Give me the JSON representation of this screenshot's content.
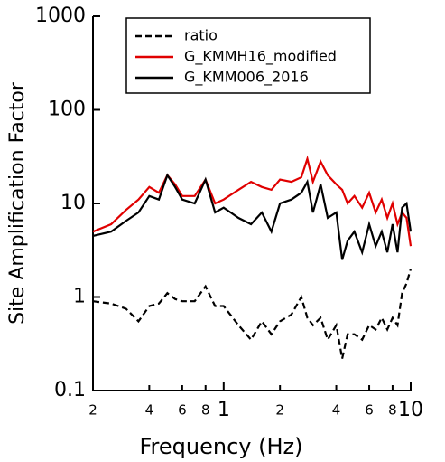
{
  "chart_data": {
    "type": "line",
    "x_label": "Frequency (Hz)",
    "y_label": "Site Amplification Factor",
    "log_x": true,
    "log_y": true,
    "xlim": [
      0.2,
      10
    ],
    "ylim": [
      0.1,
      1000
    ],
    "xticks": [
      {
        "value": 0.2,
        "label": "2"
      },
      {
        "value": 0.4,
        "label": "4"
      },
      {
        "value": 0.6,
        "label": "6"
      },
      {
        "value": 0.8,
        "label": "8"
      },
      1,
      {
        "value": 2,
        "label": "2"
      },
      {
        "value": 4,
        "label": "4"
      },
      {
        "value": 6,
        "label": "6"
      },
      {
        "value": 8,
        "label": "8"
      },
      10
    ],
    "yticks": [
      0.1,
      1,
      10,
      100,
      1000
    ],
    "legend": "upper left",
    "x": [
      0.2,
      0.25,
      0.3,
      0.35,
      0.4,
      0.45,
      0.5,
      0.55,
      0.6,
      0.7,
      0.8,
      0.9,
      1.0,
      1.2,
      1.4,
      1.6,
      1.8,
      2.0,
      2.3,
      2.6,
      2.8,
      3.0,
      3.3,
      3.6,
      4.0,
      4.3,
      4.6,
      5.0,
      5.5,
      6.0,
      6.5,
      7.0,
      7.5,
      8.0,
      8.5,
      9.0,
      9.5,
      10
    ],
    "series": [
      {
        "name": "ratio",
        "color": "#000000",
        "linestyle": "dashed",
        "values": [
          0.9,
          0.85,
          0.75,
          0.55,
          0.8,
          0.85,
          1.1,
          0.95,
          0.9,
          0.9,
          1.3,
          0.8,
          0.8,
          0.5,
          0.35,
          0.55,
          0.4,
          0.55,
          0.65,
          1.0,
          0.6,
          0.5,
          0.6,
          0.35,
          0.5,
          0.22,
          0.4,
          0.4,
          0.35,
          0.5,
          0.45,
          0.6,
          0.45,
          0.6,
          0.5,
          1.1,
          1.4,
          2.0
        ]
      },
      {
        "name": "G_KMMH16_modified",
        "color": "#e00000",
        "linestyle": "solid",
        "values": [
          5,
          6,
          8.5,
          11,
          15,
          13,
          20,
          16,
          12,
          12,
          18,
          10,
          11,
          14,
          17,
          15,
          14,
          18,
          17,
          19,
          30,
          17,
          28,
          20,
          16,
          14,
          10,
          12,
          9,
          13,
          8,
          11,
          7,
          10,
          6,
          8,
          7,
          3.5
        ]
      },
      {
        "name": "G_KMM006_2016",
        "color": "#000000",
        "linestyle": "solid",
        "values": [
          4.5,
          5,
          6.5,
          8,
          12,
          11,
          20,
          15,
          11,
          10,
          18,
          8,
          9,
          7,
          6,
          8,
          5,
          10,
          11,
          13,
          17,
          8,
          16,
          7,
          8,
          2.5,
          4,
          5,
          3,
          6,
          3.5,
          5,
          3,
          6,
          3,
          9,
          10,
          5
        ]
      }
    ]
  }
}
